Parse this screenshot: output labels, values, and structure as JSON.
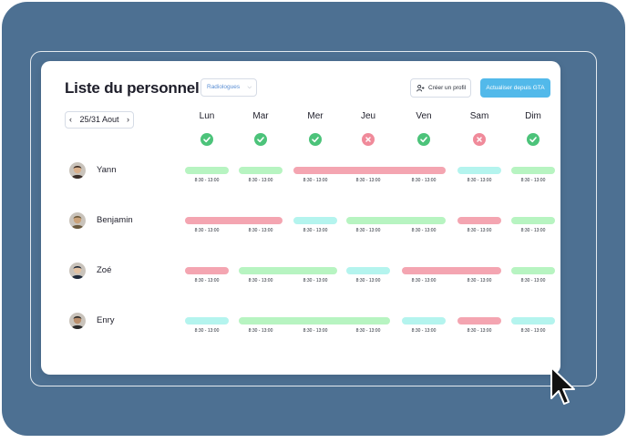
{
  "header": {
    "title": "Liste du personnel",
    "department_select": "Radiologues",
    "create_profile_label": "Créer un profil",
    "update_button_label": "Actualiser depuis GTA"
  },
  "date_nav": {
    "range": "25/31 Aout",
    "prev": "‹",
    "next": "›"
  },
  "days": [
    {
      "label": "Lun",
      "status": "ok"
    },
    {
      "label": "Mar",
      "status": "ok"
    },
    {
      "label": "Mer",
      "status": "ok"
    },
    {
      "label": "Jeu",
      "status": "no"
    },
    {
      "label": "Ven",
      "status": "ok"
    },
    {
      "label": "Sam",
      "status": "no"
    },
    {
      "label": "Dim",
      "status": "ok"
    }
  ],
  "time_label": "8:30  -  13:00",
  "colors": {
    "background": "#4d7092",
    "green": "#b7f4c1",
    "red": "#f4a5b1",
    "cyan": "#b4f4ee",
    "accent": "#52b9ea",
    "ok": "#4cc37a",
    "no": "#f08a9a"
  },
  "staff": [
    {
      "name": "Yann",
      "shifts": [
        {
          "start": 0,
          "end": 0,
          "color": "green"
        },
        {
          "start": 1,
          "end": 1,
          "color": "green"
        },
        {
          "start": 2,
          "end": 4,
          "color": "red"
        },
        {
          "start": 5,
          "end": 5,
          "color": "cyan"
        },
        {
          "start": 6,
          "end": 6,
          "color": "green"
        }
      ]
    },
    {
      "name": "Benjamin",
      "shifts": [
        {
          "start": 0,
          "end": 1,
          "color": "red"
        },
        {
          "start": 2,
          "end": 2,
          "color": "cyan"
        },
        {
          "start": 3,
          "end": 4,
          "color": "green"
        },
        {
          "start": 5,
          "end": 5,
          "color": "red"
        },
        {
          "start": 6,
          "end": 6,
          "color": "green"
        }
      ]
    },
    {
      "name": "Zoé",
      "shifts": [
        {
          "start": 0,
          "end": 0,
          "color": "red"
        },
        {
          "start": 1,
          "end": 2,
          "color": "green"
        },
        {
          "start": 3,
          "end": 3,
          "color": "cyan"
        },
        {
          "start": 4,
          "end": 5,
          "color": "red"
        },
        {
          "start": 6,
          "end": 6,
          "color": "green"
        }
      ]
    },
    {
      "name": "Enry",
      "shifts": [
        {
          "start": 0,
          "end": 0,
          "color": "cyan"
        },
        {
          "start": 1,
          "end": 3,
          "color": "green"
        },
        {
          "start": 4,
          "end": 4,
          "color": "cyan"
        },
        {
          "start": 5,
          "end": 5,
          "color": "red"
        },
        {
          "start": 6,
          "end": 6,
          "color": "cyan"
        }
      ]
    }
  ]
}
